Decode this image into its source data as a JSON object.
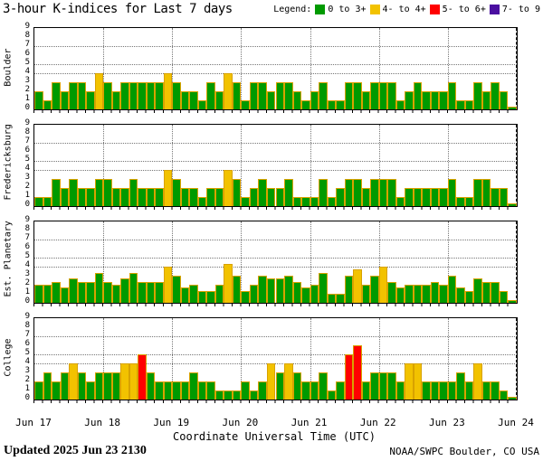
{
  "title": "3-hour K-indices for Last 7 days",
  "legend": {
    "label": "Legend:",
    "items": [
      {
        "label": "0 to 3+",
        "color": "#009A00"
      },
      {
        "label": "4- to 4+",
        "color": "#F2C200"
      },
      {
        "label": "5- to 6+",
        "color": "#FF0000"
      },
      {
        "label": "7- to 9",
        "color": "#4A0FA0"
      }
    ]
  },
  "x_axis": {
    "title": "Coordinate Universal Time (UTC)",
    "day_labels": [
      "Jun 17",
      "Jun 18",
      "Jun 19",
      "Jun 20",
      "Jun 21",
      "Jun 22",
      "Jun 23",
      "Jun 24"
    ]
  },
  "footer": {
    "updated": "Updated 2025 Jun 23 2130",
    "source": "NOAA/SWPC Boulder, CO USA"
  },
  "chart_data": {
    "type": "bar",
    "title": "3-hour K-indices for Last 7 days",
    "ylabel": "K-index",
    "ylim": [
      0,
      9
    ],
    "y_ticks": [
      9,
      8,
      7,
      6,
      5,
      4,
      3,
      2,
      1,
      0
    ],
    "dotted_y_levels": [
      4,
      5,
      7
    ],
    "grid": "dotted day boundaries vertical, dotted K=4,5,7 horizontal",
    "legend_position": "top-right",
    "bars_per_day": 8,
    "bar_interval_hours": 3,
    "days": [
      "Jun 17",
      "Jun 18",
      "Jun 19",
      "Jun 20",
      "Jun 21",
      "Jun 22",
      "Jun 23"
    ],
    "colors": {
      "green": "#009A00",
      "yellow": "#F2C200",
      "red": "#FF0000",
      "purple": "#4A0FA0",
      "outline": "#D8A200"
    },
    "color_rule": "green <3.7, yellow 3.7-4.3, red 4.7-6.3, purple >=6.7",
    "panels": [
      {
        "station": "Boulder",
        "values": [
          2,
          1,
          3,
          2,
          3,
          3,
          2,
          4,
          3,
          2,
          3,
          3,
          3,
          3,
          3,
          4,
          3,
          2,
          2,
          1,
          3,
          2,
          4,
          3,
          1,
          3,
          3,
          2,
          3,
          3,
          2,
          1,
          2,
          3,
          1,
          1,
          3,
          3,
          2,
          3,
          3,
          3,
          1,
          2,
          3,
          2,
          2,
          2,
          3,
          1,
          1,
          3,
          2,
          3,
          2,
          0.3
        ]
      },
      {
        "station": "Fredericksburg",
        "values": [
          1,
          1,
          3,
          2,
          3,
          2,
          2,
          3,
          3,
          2,
          2,
          3,
          2,
          2,
          2,
          4,
          3,
          2,
          2,
          1,
          2,
          2,
          4,
          3,
          1,
          2,
          3,
          2,
          2,
          3,
          1,
          1,
          1,
          3,
          1,
          2,
          3,
          3,
          2,
          3,
          3,
          3,
          1,
          2,
          2,
          2,
          2,
          2,
          3,
          1,
          1,
          3,
          3,
          2,
          2,
          0.3
        ]
      },
      {
        "station": "Est. Planetary",
        "values": [
          2,
          2,
          2.3,
          1.7,
          2.7,
          2.3,
          2.3,
          3.3,
          2.3,
          2,
          2.7,
          3.3,
          2.3,
          2.3,
          2.3,
          4,
          3,
          1.7,
          2,
          1.3,
          1.3,
          2,
          4.3,
          3,
          1.3,
          2,
          3,
          2.7,
          2.7,
          3,
          2.3,
          1.7,
          2,
          3.3,
          1,
          1,
          3,
          3.7,
          2,
          3,
          4,
          2.3,
          1.7,
          2,
          2,
          2,
          2.3,
          2,
          3,
          1.7,
          1.3,
          2.7,
          2.3,
          2.3,
          1.3,
          0.3
        ]
      },
      {
        "station": "College",
        "values": [
          2,
          3,
          2,
          3,
          4,
          3,
          2,
          3,
          3,
          3,
          4,
          4,
          5,
          3,
          2,
          2,
          2,
          2,
          3,
          2,
          2,
          1,
          1,
          1,
          2,
          1,
          2,
          4,
          3,
          4,
          3,
          2,
          2,
          3,
          1,
          2,
          5,
          6,
          2,
          3,
          3,
          3,
          2,
          4,
          4,
          2,
          2,
          2,
          2,
          3,
          2,
          4,
          2,
          2,
          1,
          0.3
        ]
      }
    ]
  }
}
